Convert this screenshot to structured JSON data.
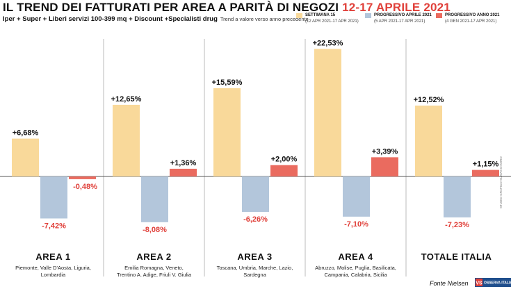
{
  "header": {
    "title": "IL TREND DEI FATTURATI PER AREA A PARITÀ DI NEGOZI",
    "title_date": "12-17 APRILE 2021",
    "subtitle": "Iper + Super + Liberi servizi 100-399 mq + Discount +Specialisti drug",
    "subtitle_note": "Trend a valore verso anno precedente"
  },
  "colors": {
    "settimana": "#f9d99a",
    "progressivo_aprile": "#b3c6db",
    "progressivo_anno": "#ea6b5f",
    "negative_label": "#e0403a",
    "title_accent": "#e0403a",
    "separator": "#bbbbbb",
    "axis": "#555555"
  },
  "legend": [
    {
      "name": "SETTIMANA 15",
      "range": "(12 APR 2021-17 APR 2021)",
      "color_key": "settimana"
    },
    {
      "name": "PROGRESSIVO APRILE 2021",
      "range": "(5 APR 2021-17 APR 2021)",
      "color_key": "progressivo_aprile"
    },
    {
      "name": "PROGRESSIVO ANNO 2021",
      "range": "(4 GEN 2021-17 APR 2021)",
      "color_key": "progressivo_anno"
    }
  ],
  "chart_data": {
    "type": "bar",
    "categories": [
      "AREA 1",
      "AREA 2",
      "AREA 3",
      "AREA 4",
      "TOTALE ITALIA"
    ],
    "category_notes": [
      "Piemonte, Valle D'Aosta, Liguria,\nLombardia",
      "Emilia Romagna, Veneto,\nTrentino A. Adige, Friuli V. Giulia",
      "Toscana, Umbria, Marche, Lazio,\nSardegna",
      "Abruzzo, Molise, Puglia, Basilicata,\nCampania, Calabria, Sicilia",
      ""
    ],
    "series": [
      {
        "name": "SETTIMANA 15",
        "values": [
          6.68,
          12.65,
          15.59,
          22.53,
          12.52
        ],
        "labels": [
          "+6,68%",
          "+12,65%",
          "+15,59%",
          "+22,53%",
          "+12,52%"
        ]
      },
      {
        "name": "PROGRESSIVO APRILE 2021",
        "values": [
          -7.42,
          -8.08,
          -6.26,
          -7.1,
          -7.23
        ],
        "labels": [
          "-7,42%",
          "-8,08%",
          "-6,26%",
          "-7,10%",
          "-7,23%"
        ]
      },
      {
        "name": "PROGRESSIVO ANNO 2021",
        "values": [
          -0.48,
          1.36,
          2.0,
          3.39,
          1.15
        ],
        "labels": [
          "-0,48%",
          "+1,36%",
          "+2,00%",
          "+3,39%",
          "+1,15%"
        ]
      }
    ],
    "unit": "%",
    "ylim": [
      -10,
      24
    ]
  },
  "footer": {
    "source": "Fonte Nielsen",
    "logo_badge": "VS",
    "logo_text": "OSSERVA ITALIA",
    "credit": "STUDIO GRAFICO SUMAS DI MIRO"
  }
}
